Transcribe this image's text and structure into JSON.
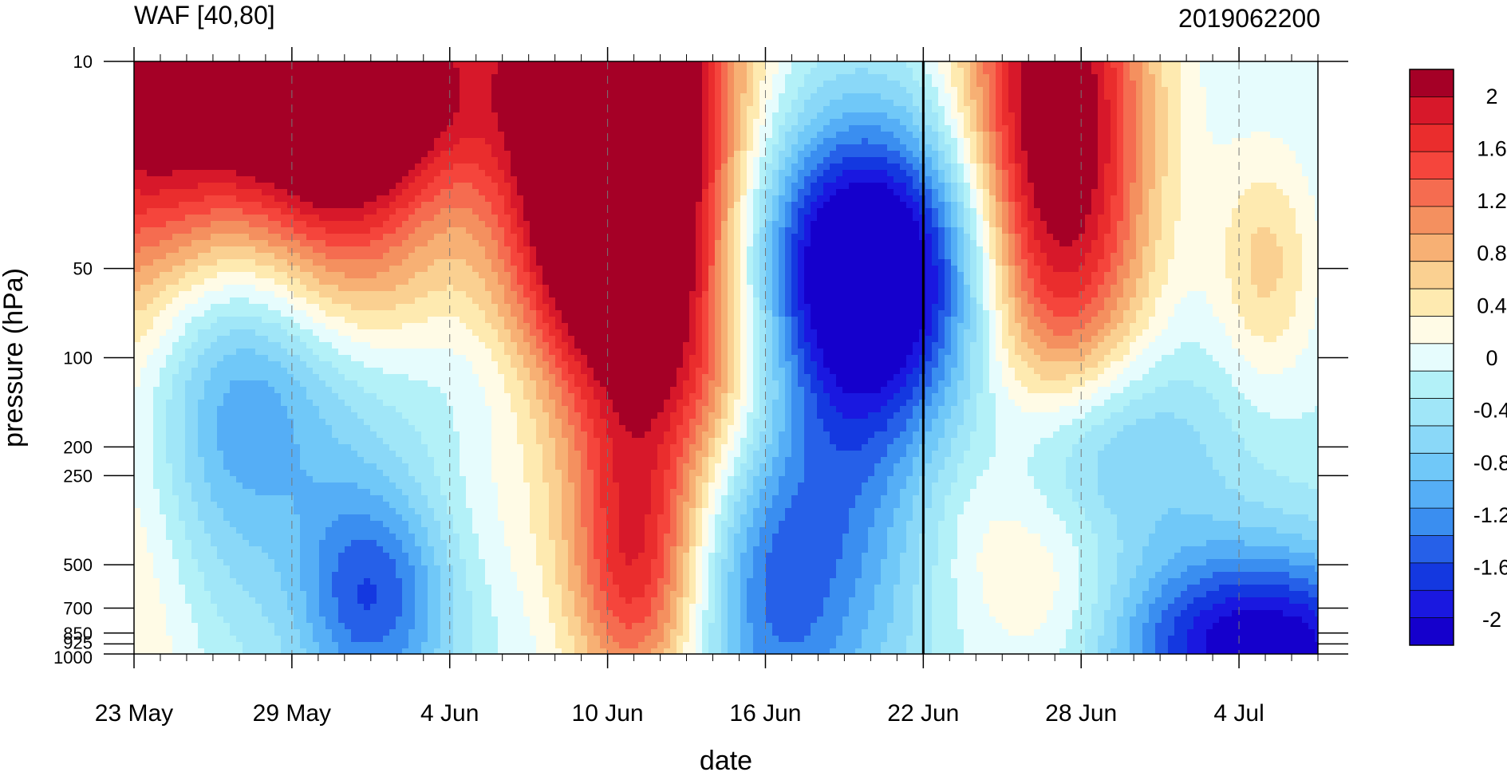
{
  "chart_data": {
    "type": "heatmap",
    "title": "WAF [40,80]",
    "subtitle": "2019062200",
    "xlabel": "date",
    "ylabel": "pressure (hPa)",
    "y_scale": "log",
    "y_reversed": true,
    "xlim": [
      "2019-05-23",
      "2019-07-07"
    ],
    "ylim": [
      1000,
      10
    ],
    "x_ticks": [
      {
        "date": "2019-05-23",
        "label": "23 May"
      },
      {
        "date": "2019-05-29",
        "label": "29 May"
      },
      {
        "date": "2019-06-04",
        "label": "4 Jun"
      },
      {
        "date": "2019-06-10",
        "label": "10 Jun"
      },
      {
        "date": "2019-06-16",
        "label": "16 Jun"
      },
      {
        "date": "2019-06-22",
        "label": "22 Jun"
      },
      {
        "date": "2019-06-28",
        "label": "28 Jun"
      },
      {
        "date": "2019-07-04",
        "label": "4 Jul"
      }
    ],
    "y_ticks": [
      {
        "value": 10,
        "label": "10"
      },
      {
        "value": 50,
        "label": "50"
      },
      {
        "value": 100,
        "label": "100"
      },
      {
        "value": 200,
        "label": "200"
      },
      {
        "value": 250,
        "label": "250"
      },
      {
        "value": 500,
        "label": "500"
      },
      {
        "value": 700,
        "label": "700"
      },
      {
        "value": 850,
        "label": "850"
      },
      {
        "value": 925,
        "label": "925"
      },
      {
        "value": 1000,
        "label": "1000"
      }
    ],
    "reference_line_date": "2019-06-22",
    "colorbar": {
      "levels": [
        2.2,
        2.0,
        1.8,
        1.6,
        1.4,
        1.2,
        1.0,
        0.8,
        0.6,
        0.4,
        0.2,
        0.0,
        -0.2,
        -0.4,
        -0.6,
        -0.8,
        -1.0,
        -1.2,
        -1.4,
        -1.6,
        -1.8,
        -2.0,
        -2.2
      ],
      "colors": [
        "#a50026",
        "#d7182a",
        "#ea2d2d",
        "#f5453c",
        "#f56c50",
        "#f4905f",
        "#f7b074",
        "#fad091",
        "#feeab0",
        "#fffbe6",
        "#e6fcfd",
        "#b3f1f8",
        "#a0e6f8",
        "#8ad8f8",
        "#70c8f8",
        "#55aef6",
        "#3a8ef0",
        "#2660e8",
        "#1438e0",
        "#1a18e0",
        "#1500cc"
      ],
      "tick_values": [
        2,
        1.6,
        1.2,
        0.8,
        0.4,
        0,
        -0.4,
        -0.8,
        -1.2,
        -1.6,
        -2
      ],
      "tick_labels": [
        "2",
        "1.6",
        "1.2",
        "0.8",
        "0.4",
        "0",
        "-0.4",
        "-0.8",
        "-1.2",
        "-1.6",
        "-2"
      ]
    },
    "features": [
      {
        "date": "2019-05-25",
        "p": 12,
        "v": 2.6,
        "w": 5,
        "h": 2.2
      },
      {
        "date": "2019-05-31",
        "p": 15,
        "v": 1.4,
        "w": 2.5,
        "h": 1.5
      },
      {
        "date": "2019-06-02",
        "p": 12,
        "v": 1.2,
        "w": 3,
        "h": 1.2
      },
      {
        "date": "2019-06-10",
        "p": 14,
        "v": 2.8,
        "w": 3,
        "h": 2.6
      },
      {
        "date": "2019-06-11",
        "p": 30,
        "v": 1.4,
        "w": 3,
        "h": 2.2
      },
      {
        "date": "2019-06-27",
        "p": 20,
        "v": 2.6,
        "w": 2.5,
        "h": 3
      },
      {
        "date": "2019-05-23",
        "p": 400,
        "v": 0.5,
        "w": 2,
        "h": 3
      },
      {
        "date": "2019-05-29",
        "p": 600,
        "v": 0.3,
        "w": 1.5,
        "h": 1.2
      },
      {
        "date": "2019-06-01",
        "p": 60,
        "v": 0.4,
        "w": 3,
        "h": 0.8
      },
      {
        "date": "2019-06-08",
        "p": 60,
        "v": 0.3,
        "w": 3,
        "h": 1
      },
      {
        "date": "2019-06-14",
        "p": 110,
        "v": 0.8,
        "w": 3,
        "h": 1.2
      },
      {
        "date": "2019-06-11",
        "p": 500,
        "v": 1.6,
        "w": 1.8,
        "h": 1.5
      },
      {
        "date": "2019-06-05",
        "p": 380,
        "v": 0.3,
        "w": 2,
        "h": 1.5
      },
      {
        "date": "2019-05-27",
        "p": 110,
        "v": -1.3,
        "w": 3,
        "h": 2
      },
      {
        "date": "2019-06-01",
        "p": 650,
        "v": -1.4,
        "w": 2.5,
        "h": 1.2
      },
      {
        "date": "2019-06-06",
        "p": 80,
        "v": -0.5,
        "w": 3,
        "h": 1.5
      },
      {
        "date": "2019-06-16",
        "p": 650,
        "v": -0.9,
        "w": 2,
        "h": 1.8
      },
      {
        "date": "2019-06-20",
        "p": 50,
        "v": -2.4,
        "w": 3.5,
        "h": 1.5
      },
      {
        "date": "2019-06-19",
        "p": 300,
        "v": -0.9,
        "w": 2.5,
        "h": 2.5
      },
      {
        "date": "2019-06-28",
        "p": 200,
        "v": -1.0,
        "w": 3,
        "h": 1.0
      },
      {
        "date": "2019-06-24",
        "p": 290,
        "v": 0.3,
        "w": 1.8,
        "h": 1.2
      },
      {
        "date": "2019-06-27",
        "p": 700,
        "v": 0.3,
        "w": 2,
        "h": 1
      },
      {
        "date": "2019-07-05",
        "p": 50,
        "v": 0.7,
        "w": 1.4,
        "h": 1.2
      },
      {
        "date": "2019-07-05",
        "p": 970,
        "v": -2.0,
        "w": 4,
        "h": 1.0
      },
      {
        "date": "2019-07-01",
        "p": 300,
        "v": -0.2,
        "w": 4,
        "h": 2.5
      }
    ]
  }
}
